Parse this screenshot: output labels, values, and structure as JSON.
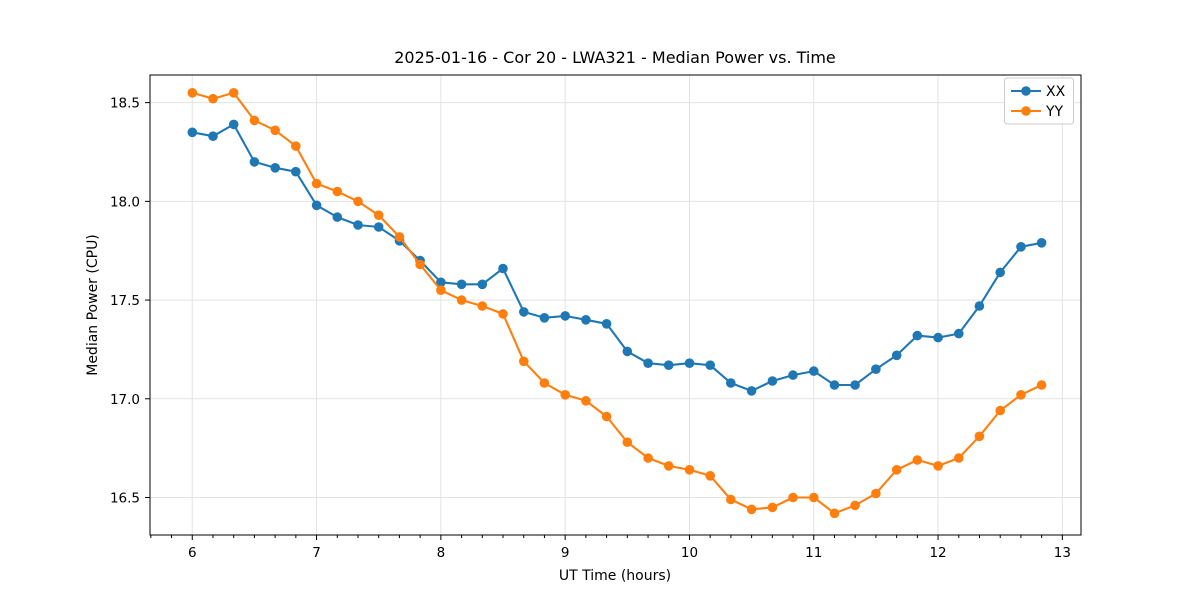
{
  "chart_data": {
    "type": "line",
    "title": "2025-01-16 - Cor 20 - LWA321 - Median Power vs. Time",
    "xlabel": "UT Time (hours)",
    "ylabel": "Median Power (CPU)",
    "legend_position": "upper right",
    "grid": true,
    "xlim": [
      5.66,
      13.15
    ],
    "ylim": [
      16.31,
      18.64
    ],
    "x_ticks": [
      6,
      7,
      8,
      9,
      10,
      11,
      12,
      13
    ],
    "x_tick_labels": [
      "6",
      "7",
      "8",
      "9",
      "10",
      "11",
      "12",
      "13"
    ],
    "y_ticks": [
      16.5,
      17.0,
      17.5,
      18.0,
      18.5
    ],
    "y_tick_labels": [
      "16.5",
      "17.0",
      "17.5",
      "18.0",
      "18.5"
    ],
    "x_minor_tick_step_hours": 0.16667,
    "x": [
      6.0,
      6.167,
      6.333,
      6.5,
      6.667,
      6.833,
      7.0,
      7.167,
      7.333,
      7.5,
      7.667,
      7.833,
      8.0,
      8.167,
      8.333,
      8.5,
      8.667,
      8.833,
      9.0,
      9.167,
      9.333,
      9.5,
      9.667,
      9.833,
      10.0,
      10.167,
      10.333,
      10.5,
      10.667,
      10.833,
      11.0,
      11.167,
      11.333,
      11.5,
      11.667,
      11.833,
      12.0,
      12.167,
      12.333,
      12.5,
      12.667,
      12.833
    ],
    "series": [
      {
        "name": "XX",
        "color": "#1f77b4",
        "values": [
          18.35,
          18.33,
          18.39,
          18.2,
          18.17,
          18.15,
          17.98,
          17.92,
          17.88,
          17.87,
          17.8,
          17.7,
          17.59,
          17.58,
          17.58,
          17.66,
          17.44,
          17.41,
          17.42,
          17.4,
          17.38,
          17.24,
          17.18,
          17.17,
          17.18,
          17.17,
          17.08,
          17.04,
          17.09,
          17.12,
          17.14,
          17.07,
          17.07,
          17.15,
          17.22,
          17.32,
          17.31,
          17.33,
          17.47,
          17.64,
          17.77,
          17.79
        ]
      },
      {
        "name": "YY",
        "color": "#ff7f0e",
        "values": [
          18.55,
          18.52,
          18.55,
          18.41,
          18.36,
          18.28,
          18.09,
          18.05,
          18.0,
          17.93,
          17.82,
          17.68,
          17.55,
          17.5,
          17.47,
          17.43,
          17.19,
          17.08,
          17.02,
          16.99,
          16.91,
          16.78,
          16.7,
          16.66,
          16.64,
          16.61,
          16.49,
          16.44,
          16.45,
          16.5,
          16.5,
          16.42,
          16.46,
          16.52,
          16.64,
          16.69,
          16.66,
          16.7,
          16.81,
          16.94,
          17.02,
          17.07
        ]
      }
    ]
  }
}
